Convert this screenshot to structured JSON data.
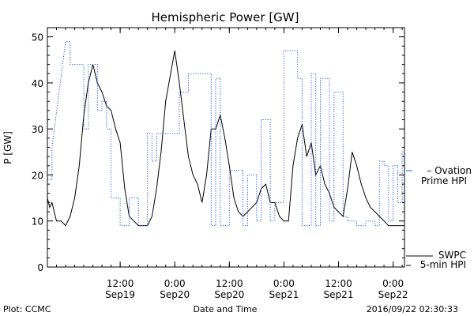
{
  "chart_data": {
    "type": "line",
    "title": "Hemispheric Power [GW]",
    "ylabel": "P [GW]",
    "xlabel": "Date and Time",
    "ylim": [
      0,
      52
    ],
    "yticks": [
      0,
      10,
      20,
      30,
      40,
      50
    ],
    "xlim": [
      "2016-09-18 20:00",
      "2016-09-22 02:30"
    ],
    "xticks": [
      {
        "time": "2016-09-19 12:00",
        "line1": "12:00",
        "line2": "Sep19"
      },
      {
        "time": "2016-09-20 00:00",
        "line1": "0:00",
        "line2": "Sep20"
      },
      {
        "time": "2016-09-20 12:00",
        "line1": "12:00",
        "line2": "Sep20"
      },
      {
        "time": "2016-09-21 00:00",
        "line1": "0:00",
        "line2": "Sep21"
      },
      {
        "time": "2016-09-21 12:00",
        "line1": "12:00",
        "line2": "Sep21"
      },
      {
        "time": "2016-09-22 00:00",
        "line1": "0:00",
        "line2": "Sep22"
      }
    ],
    "grid": false,
    "legend_placement": "right",
    "series": [
      {
        "name": "SWPC 5-min HPI",
        "legend_lines": [
          "SWPC",
          "5-min HPI"
        ],
        "color": "#000000",
        "style": "solid",
        "x": [
          "2016-09-18 20:00",
          "2016-09-18 20:30",
          "2016-09-18 21:00",
          "2016-09-18 22:00",
          "2016-09-18 23:00",
          "2016-09-19 00:00",
          "2016-09-19 01:00",
          "2016-09-19 02:00",
          "2016-09-19 03:00",
          "2016-09-19 04:00",
          "2016-09-19 05:00",
          "2016-09-19 06:00",
          "2016-09-19 07:00",
          "2016-09-19 08:00",
          "2016-09-19 09:00",
          "2016-09-19 10:00",
          "2016-09-19 11:00",
          "2016-09-19 12:00",
          "2016-09-19 13:00",
          "2016-09-19 14:00",
          "2016-09-19 15:00",
          "2016-09-19 16:00",
          "2016-09-19 17:00",
          "2016-09-19 18:00",
          "2016-09-19 19:00",
          "2016-09-19 20:00",
          "2016-09-19 21:00",
          "2016-09-19 22:00",
          "2016-09-20 00:00",
          "2016-09-20 01:00",
          "2016-09-20 02:00",
          "2016-09-20 03:00",
          "2016-09-20 04:00",
          "2016-09-20 05:00",
          "2016-09-20 06:00",
          "2016-09-20 07:00",
          "2016-09-20 08:00",
          "2016-09-20 09:00",
          "2016-09-20 10:00",
          "2016-09-20 11:00",
          "2016-09-20 12:00",
          "2016-09-20 13:00",
          "2016-09-20 14:00",
          "2016-09-20 15:00",
          "2016-09-20 16:00",
          "2016-09-20 17:00",
          "2016-09-20 18:00",
          "2016-09-20 19:00",
          "2016-09-20 20:00",
          "2016-09-20 21:00",
          "2016-09-20 22:00",
          "2016-09-20 23:00",
          "2016-09-21 00:00",
          "2016-09-21 01:00",
          "2016-09-21 02:00",
          "2016-09-21 03:00",
          "2016-09-21 04:00",
          "2016-09-21 05:00",
          "2016-09-21 06:00",
          "2016-09-21 07:00",
          "2016-09-21 08:00",
          "2016-09-21 09:00",
          "2016-09-21 10:00",
          "2016-09-21 11:00",
          "2016-09-21 12:00",
          "2016-09-21 13:00",
          "2016-09-21 14:00",
          "2016-09-21 15:00",
          "2016-09-21 16:00",
          "2016-09-21 17:00",
          "2016-09-21 18:00",
          "2016-09-21 19:00",
          "2016-09-21 20:00",
          "2016-09-21 21:00",
          "2016-09-21 22:00",
          "2016-09-21 23:00",
          "2016-09-22 00:00",
          "2016-09-22 01:00",
          "2016-09-22 02:00",
          "2016-09-22 02:30"
        ],
        "y": [
          15,
          13,
          14,
          10,
          10,
          9,
          11,
          15,
          22,
          33,
          40,
          44,
          40,
          38,
          35,
          34,
          30,
          27,
          17,
          11,
          10,
          9,
          9,
          9,
          11,
          17,
          25,
          36,
          47,
          40,
          32,
          24,
          20,
          18,
          14,
          20,
          30,
          30,
          33,
          28,
          22,
          15,
          12,
          11,
          12,
          13,
          14,
          17,
          18,
          14,
          14,
          11,
          10,
          10,
          22,
          28,
          31,
          24,
          27,
          20,
          22,
          18,
          16,
          13,
          12,
          11,
          17,
          25,
          22,
          18,
          15,
          13,
          12,
          11,
          10,
          9,
          9,
          9,
          9,
          9
        ]
      },
      {
        "name": "Ovation Prime HPI",
        "legend_lines": [
          "Ovation",
          "Prime HPI"
        ],
        "color": "#2255dd",
        "style": "dotted",
        "x": [
          "2016-09-18 20:00",
          "2016-09-18 21:00",
          "2016-09-18 21:00",
          "2016-09-19 00:00",
          "2016-09-19 01:00",
          "2016-09-19 01:00",
          "2016-09-19 04:00",
          "2016-09-19 04:00",
          "2016-09-19 05:00",
          "2016-09-19 05:00",
          "2016-09-19 06:00",
          "2016-09-19 07:00",
          "2016-09-19 07:00",
          "2016-09-19 08:00",
          "2016-09-19 08:00",
          "2016-09-19 09:00",
          "2016-09-19 09:00",
          "2016-09-19 10:00",
          "2016-09-19 10:00",
          "2016-09-19 11:00",
          "2016-09-19 12:00",
          "2016-09-19 12:00",
          "2016-09-19 14:00",
          "2016-09-19 14:00",
          "2016-09-19 16:00",
          "2016-09-19 16:00",
          "2016-09-19 18:00",
          "2016-09-19 18:00",
          "2016-09-19 19:00",
          "2016-09-19 19:00",
          "2016-09-19 20:00",
          "2016-09-19 20:00",
          "2016-09-19 22:00",
          "2016-09-19 22:00",
          "2016-09-20 01:00",
          "2016-09-20 01:00",
          "2016-09-20 03:00",
          "2016-09-20 03:00",
          "2016-09-20 05:00",
          "2016-09-20 06:00",
          "2016-09-20 08:00",
          "2016-09-20 08:00",
          "2016-09-20 09:00",
          "2016-09-20 09:00",
          "2016-09-20 10:00",
          "2016-09-20 10:00",
          "2016-09-20 12:00",
          "2016-09-20 12:00",
          "2016-09-20 15:00",
          "2016-09-20 15:00",
          "2016-09-20 16:00",
          "2016-09-20 16:00",
          "2016-09-20 18:00",
          "2016-09-20 18:00",
          "2016-09-20 19:00",
          "2016-09-20 19:00",
          "2016-09-20 21:00",
          "2016-09-20 21:00",
          "2016-09-20 22:00",
          "2016-09-20 22:00",
          "2016-09-21 00:00",
          "2016-09-21 00:00",
          "2016-09-21 03:00",
          "2016-09-21 03:00",
          "2016-09-21 04:00",
          "2016-09-21 04:00",
          "2016-09-21 06:00",
          "2016-09-21 06:00",
          "2016-09-21 07:00",
          "2016-09-21 07:00",
          "2016-09-21 08:00",
          "2016-09-21 08:00",
          "2016-09-21 10:00",
          "2016-09-21 10:00",
          "2016-09-21 11:00",
          "2016-09-21 11:00",
          "2016-09-21 13:00",
          "2016-09-21 13:00",
          "2016-09-21 14:00",
          "2016-09-21 14:00",
          "2016-09-21 16:00",
          "2016-09-21 16:00",
          "2016-09-21 18:00",
          "2016-09-21 18:00",
          "2016-09-21 20:00",
          "2016-09-21 20:00",
          "2016-09-21 21:00",
          "2016-09-21 21:00",
          "2016-09-21 22:00",
          "2016-09-21 22:00",
          "2016-09-21 23:00",
          "2016-09-21 23:00",
          "2016-09-22 00:00",
          "2016-09-22 00:00",
          "2016-09-22 01:00",
          "2016-09-22 01:00",
          "2016-09-22 02:00",
          "2016-09-22 02:00",
          "2016-09-22 02:30"
        ],
        "y": [
          19,
          19,
          26,
          49,
          49,
          44,
          44,
          30,
          30,
          44,
          44,
          44,
          34,
          34,
          36,
          36,
          30,
          30,
          15,
          15,
          15,
          9,
          9,
          15,
          15,
          9,
          9,
          29,
          29,
          23,
          23,
          29,
          29,
          29,
          29,
          38,
          38,
          42,
          42,
          42,
          42,
          9,
          9,
          41,
          41,
          9,
          9,
          21,
          21,
          9,
          9,
          20,
          20,
          10,
          10,
          32,
          32,
          10,
          10,
          14,
          14,
          47,
          47,
          41,
          41,
          9,
          9,
          42,
          42,
          9,
          9,
          41,
          41,
          10,
          10,
          38,
          38,
          11,
          11,
          10,
          10,
          9,
          9,
          10,
          10,
          9,
          9,
          23,
          23,
          22,
          22,
          10,
          10,
          22,
          22,
          14,
          14,
          25,
          25
        ]
      }
    ]
  },
  "footer": {
    "left": "Plot: CCMC",
    "center": "Date and Time",
    "right": "2016/09/22 02:30:33"
  }
}
